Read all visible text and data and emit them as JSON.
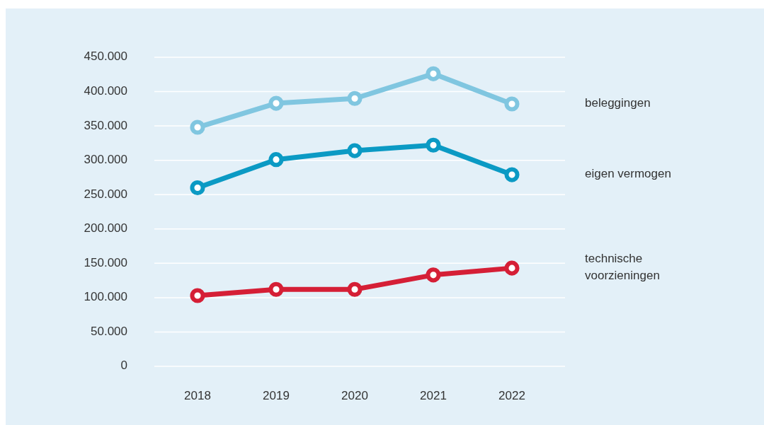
{
  "chart_data": {
    "type": "line",
    "categories": [
      "2018",
      "2019",
      "2020",
      "2021",
      "2022"
    ],
    "series": [
      {
        "name": "beleggingen",
        "color": "#80c6e0",
        "values": [
          348000,
          383000,
          390000,
          426000,
          382000
        ]
      },
      {
        "name": "eigen vermogen",
        "color": "#0b9ac4",
        "values": [
          260000,
          301000,
          314000,
          322000,
          279000
        ]
      },
      {
        "name": "technische voorzieningen",
        "color": "#d51f36",
        "values": [
          103000,
          112000,
          112000,
          133000,
          143000
        ]
      }
    ],
    "ylim": [
      0,
      450000
    ],
    "yticks": [
      {
        "value": 0,
        "label": "0"
      },
      {
        "value": 50000,
        "label": "50.000"
      },
      {
        "value": 100000,
        "label": "100.000"
      },
      {
        "value": 150000,
        "label": "150.000"
      },
      {
        "value": 200000,
        "label": "200.000"
      },
      {
        "value": 250000,
        "label": "250.000"
      },
      {
        "value": 300000,
        "label": "300.000"
      },
      {
        "value": 350000,
        "label": "350.000"
      },
      {
        "value": 400000,
        "label": "400.000"
      },
      {
        "value": 450000,
        "label": "450.000"
      }
    ],
    "grid": "y",
    "marker": "circle",
    "line_style": "solid"
  }
}
